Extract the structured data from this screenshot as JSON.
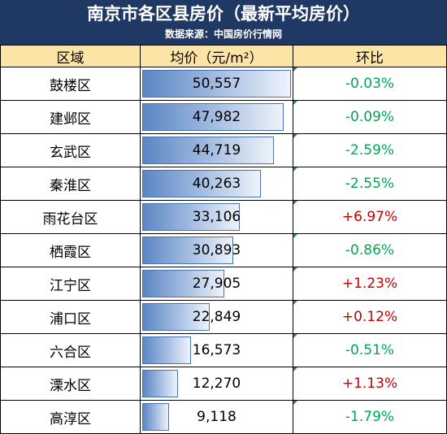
{
  "header": {
    "title": "南京市各区县房价（最新平均房价）",
    "subtitle": "数据来源：中国房价行情网"
  },
  "columns": {
    "district": "区域",
    "price": "均价（元/m²）",
    "change": "环比"
  },
  "colors": {
    "header_bg": "#1f3864",
    "column_header_bg": "#fce4a6",
    "positive_change": "#c00000",
    "negative_change": "#00a651",
    "bar_fill": "#5b86c3"
  },
  "rows": [
    {
      "district": "鼓楼区",
      "price": "50,557",
      "price_value": 50557,
      "change": "-0.03%"
    },
    {
      "district": "建邺区",
      "price": "47,982",
      "price_value": 47982,
      "change": "-0.09%"
    },
    {
      "district": "玄武区",
      "price": "44,719",
      "price_value": 44719,
      "change": "-2.59%"
    },
    {
      "district": "秦淮区",
      "price": "40,263",
      "price_value": 40263,
      "change": "-2.55%"
    },
    {
      "district": "雨花台区",
      "price": "33,106",
      "price_value": 33106,
      "change": "+6.97%"
    },
    {
      "district": "栖霞区",
      "price": "30,893",
      "price_value": 30893,
      "change": "-0.86%"
    },
    {
      "district": "江宁区",
      "price": "27,905",
      "price_value": 27905,
      "change": "+1.23%"
    },
    {
      "district": "浦口区",
      "price": "22,849",
      "price_value": 22849,
      "change": "+0.12%"
    },
    {
      "district": "六合区",
      "price": "16,573",
      "price_value": 16573,
      "change": "-0.51%"
    },
    {
      "district": "溧水区",
      "price": "12,270",
      "price_value": 12270,
      "change": "+1.13%"
    },
    {
      "district": "高淳区",
      "price": "9,118",
      "price_value": 9118,
      "change": "-1.79%"
    }
  ]
}
